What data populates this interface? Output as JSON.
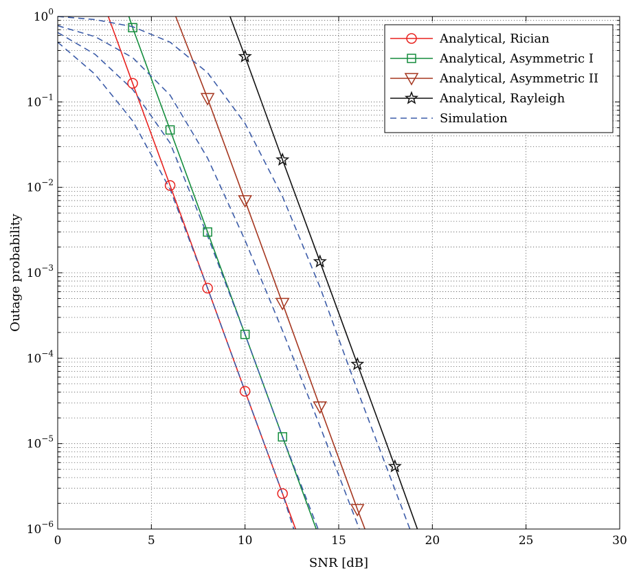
{
  "chart_data": {
    "type": "line",
    "title": "",
    "xlabel": "SNR [dB]",
    "ylabel": "Outage probability",
    "xlim": [
      0,
      30
    ],
    "ylim": [
      1e-06,
      1
    ],
    "yscale": "log",
    "grid": true,
    "legend_position": "top-right",
    "x_ticks": [
      0,
      5,
      10,
      15,
      20,
      25,
      30
    ],
    "y_ticks": [
      {
        "base": "10",
        "exp": "0",
        "value": 1
      },
      {
        "base": "10",
        "exp": "−1",
        "value": 0.1
      },
      {
        "base": "10",
        "exp": "−2",
        "value": 0.01
      },
      {
        "base": "10",
        "exp": "−3",
        "value": 0.001
      },
      {
        "base": "10",
        "exp": "−4",
        "value": 0.0001
      },
      {
        "base": "10",
        "exp": "−5",
        "value": 1e-05
      },
      {
        "base": "10",
        "exp": "−6",
        "value": 1e-06
      }
    ],
    "series": [
      {
        "name": "Analytical, Rician",
        "color": "#e8211e",
        "marker": "circle",
        "x": [
          2.7,
          4,
          6,
          8,
          10,
          12,
          12.7
        ],
        "y": [
          1.0,
          0.165,
          0.0105,
          0.00066,
          4.1e-05,
          2.6e-06,
          1e-06
        ],
        "marker_x": [
          4,
          6,
          8,
          10,
          12
        ],
        "marker_y": [
          0.165,
          0.0105,
          0.00066,
          4.1e-05,
          2.6e-06
        ]
      },
      {
        "name": "Analytical, Asymmetric I",
        "color": "#138c3c",
        "marker": "square",
        "x": [
          3.8,
          4,
          6,
          8,
          10,
          12,
          13.8
        ],
        "y": [
          1.0,
          0.74,
          0.047,
          0.003,
          0.00019,
          1.2e-05,
          1e-06
        ],
        "marker_x": [
          4,
          6,
          8,
          10,
          12
        ],
        "marker_y": [
          0.74,
          0.047,
          0.003,
          0.00019,
          1.2e-05
        ]
      },
      {
        "name": "Analytical, Asymmetric II",
        "color": "#a5361f",
        "marker": "triangle-down",
        "x": [
          6.3,
          8,
          10,
          12,
          14,
          16,
          16.4
        ],
        "y": [
          1.0,
          0.11,
          0.007,
          0.00044,
          2.7e-05,
          1.7e-06,
          1e-06
        ],
        "marker_x": [
          8,
          10,
          12,
          14,
          16
        ],
        "marker_y": [
          0.11,
          0.007,
          0.00044,
          2.7e-05,
          1.7e-06
        ]
      },
      {
        "name": "Analytical, Rayleigh",
        "color": "#111111",
        "marker": "star",
        "x": [
          9.2,
          10,
          12,
          14,
          16,
          18,
          19.2
        ],
        "y": [
          1.0,
          0.34,
          0.021,
          0.00135,
          8.5e-05,
          5.4e-06,
          1e-06
        ],
        "marker_x": [
          10,
          12,
          14,
          16,
          18
        ],
        "marker_y": [
          0.34,
          0.021,
          0.00135,
          8.5e-05,
          5.4e-06
        ]
      },
      {
        "name": "Simulation",
        "color": "#3b5ba8",
        "marker": "none",
        "dash": "dashed",
        "legend": true,
        "x": [
          0,
          2,
          4,
          6,
          8,
          10,
          12,
          12.6
        ],
        "y": [
          0.5,
          0.21,
          0.06,
          0.0095,
          0.00066,
          4.1e-05,
          2.6e-06,
          1e-06
        ]
      },
      {
        "name": "",
        "color": "#3b5ba8",
        "marker": "none",
        "dash": "dashed",
        "legend": false,
        "x": [
          0,
          2,
          4,
          6,
          8,
          10,
          12,
          13.9
        ],
        "y": [
          0.65,
          0.36,
          0.14,
          0.033,
          0.0027,
          0.00019,
          1.2e-05,
          1e-06
        ]
      },
      {
        "name": "",
        "color": "#3b5ba8",
        "marker": "none",
        "dash": "dashed",
        "legend": false,
        "x": [
          0,
          2,
          4,
          6,
          8,
          10,
          12,
          14,
          16.1
        ],
        "y": [
          0.78,
          0.58,
          0.33,
          0.12,
          0.022,
          0.0024,
          0.00021,
          1.6e-05,
          1e-06
        ]
      },
      {
        "name": "",
        "color": "#3b5ba8",
        "marker": "none",
        "dash": "dashed",
        "legend": false,
        "x": [
          0,
          2,
          4,
          6,
          8,
          10,
          12,
          14,
          16,
          18.8
        ],
        "y": [
          1.0,
          0.92,
          0.76,
          0.5,
          0.22,
          0.056,
          0.0078,
          0.00068,
          4.2e-05,
          1e-06
        ]
      }
    ]
  }
}
